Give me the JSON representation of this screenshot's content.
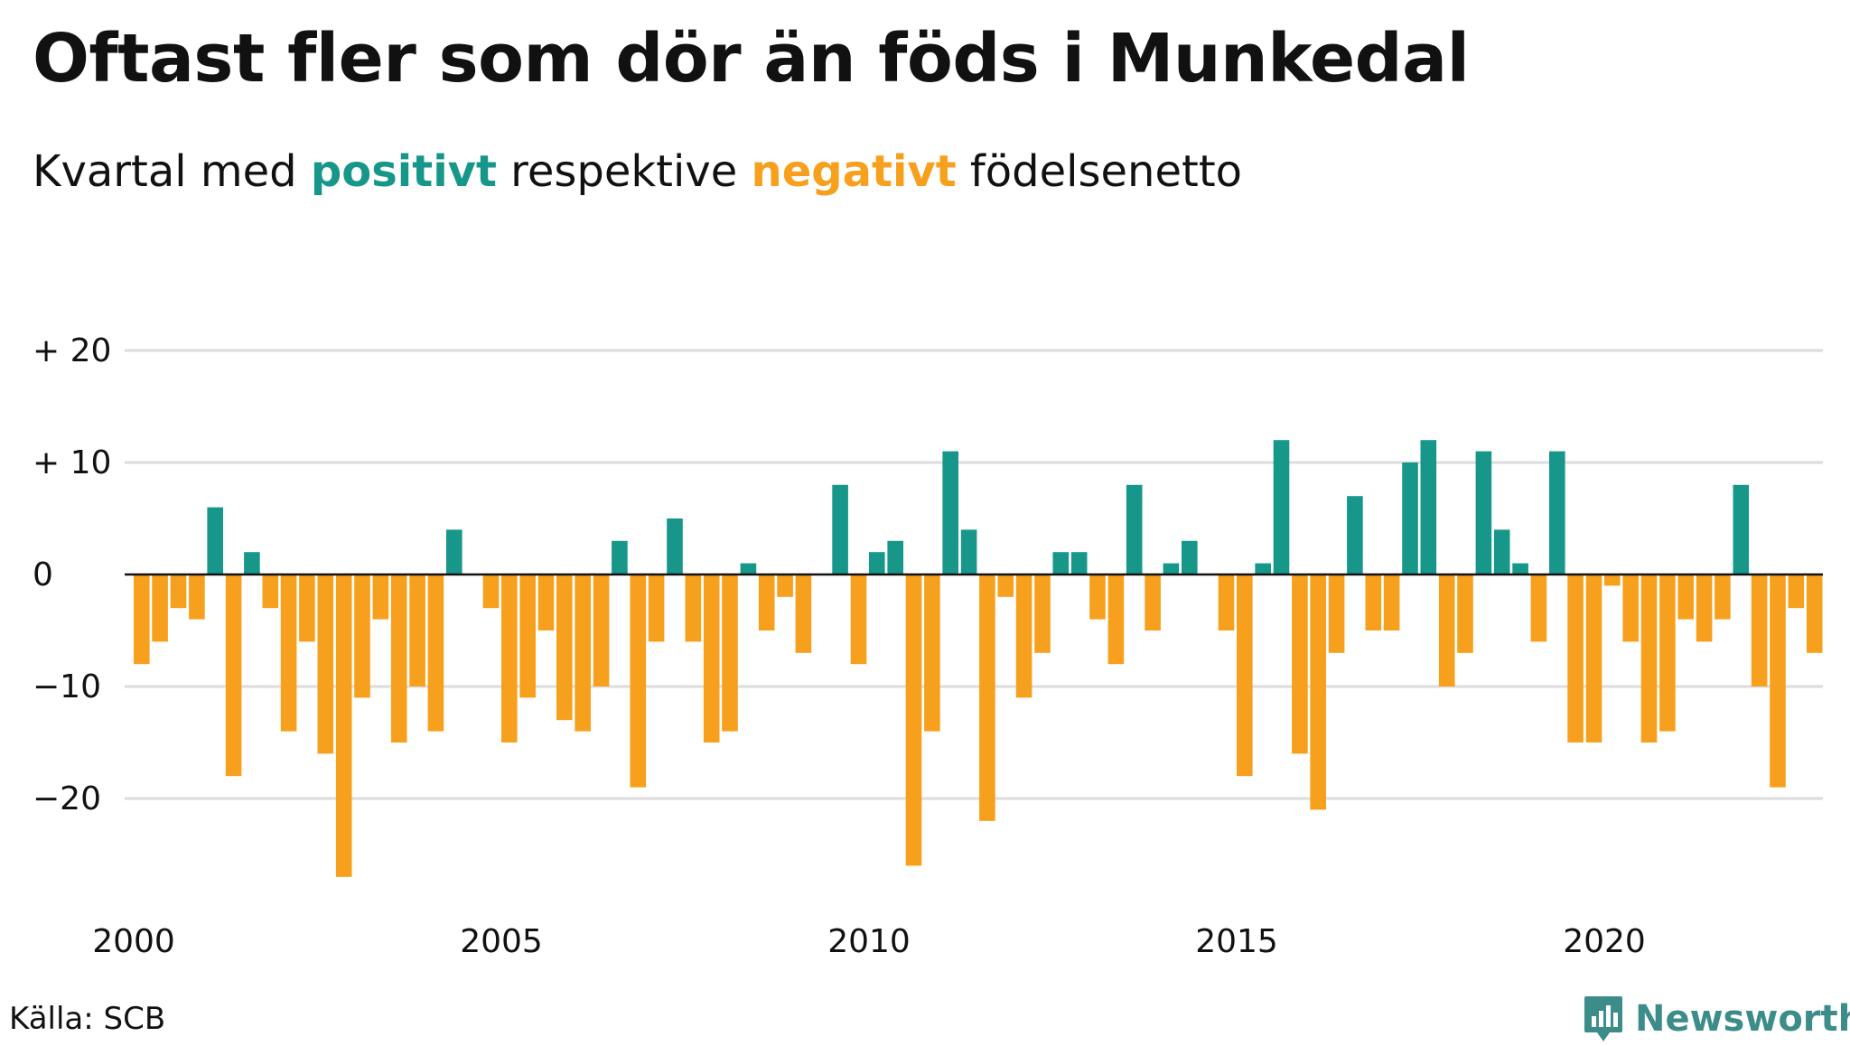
{
  "title": "Oftast fler som dör än föds i Munkedal",
  "subtitle": {
    "pre": "Kvartal med",
    "positive_word": "positivt",
    "mid": "respektive",
    "negative_word": "negativt",
    "post": "födelsenetto"
  },
  "source": "Källa: SCB",
  "brand": "Newsworthy",
  "colors": {
    "positive": "#16978a",
    "negative": "#f7a01d",
    "grid": "#dcdcdc",
    "brand": "#3c8d8a"
  },
  "chart_data": {
    "type": "bar",
    "start_year": 2000,
    "periods_per_year": 4,
    "ylim": [
      -30,
      22
    ],
    "y_ticks": [
      {
        "value": 20,
        "label": "+ 20"
      },
      {
        "value": 10,
        "label": "+ 10"
      },
      {
        "value": 0,
        "label": "0"
      },
      {
        "value": -10,
        "label": "−10"
      },
      {
        "value": -20,
        "label": "−20"
      }
    ],
    "x_ticks": [
      {
        "value": 2000,
        "label": "2000"
      },
      {
        "value": 2005,
        "label": "2005"
      },
      {
        "value": 2010,
        "label": "2010"
      },
      {
        "value": 2015,
        "label": "2015"
      },
      {
        "value": 2020,
        "label": "2020"
      }
    ],
    "grid": true,
    "legend": "none",
    "values": [
      -8,
      -6,
      -3,
      -4,
      6,
      -18,
      2,
      -3,
      -14,
      -6,
      -16,
      -27,
      -11,
      -4,
      -15,
      -10,
      -14,
      4,
      0,
      -3,
      -15,
      -11,
      -5,
      -13,
      -14,
      -10,
      3,
      -19,
      -6,
      5,
      -6,
      -15,
      -14,
      1,
      -5,
      -2,
      -7,
      0,
      8,
      -8,
      2,
      3,
      -26,
      -14,
      11,
      4,
      -22,
      -2,
      -11,
      -7,
      2,
      2,
      -4,
      -8,
      8,
      -5,
      1,
      3,
      0,
      -5,
      -18,
      1,
      12,
      -16,
      -21,
      -7,
      7,
      -5,
      -5,
      10,
      12,
      -10,
      -7,
      11,
      4,
      1,
      -6,
      11,
      -15,
      -15,
      -1,
      -6,
      -15,
      -14,
      -4,
      -6,
      -4,
      8,
      -10,
      -19,
      -3,
      -7
    ]
  }
}
